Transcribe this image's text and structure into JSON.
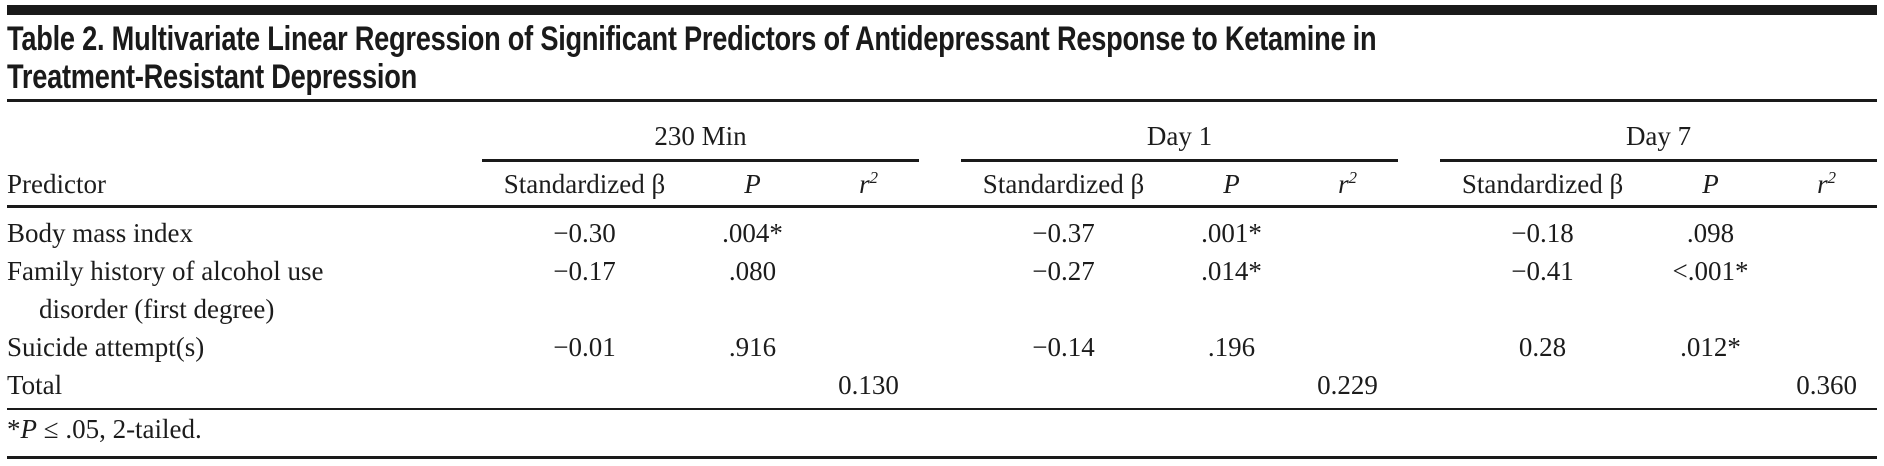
{
  "title": {
    "line1": "Table 2. Multivariate Linear Regression of Significant Predictors of Antidepressant Response to Ketamine in",
    "line2": "Treatment-Resistant Depression"
  },
  "table": {
    "groups": {
      "g1": "230 Min",
      "g2": "Day 1",
      "g3": "Day 7"
    },
    "headers": {
      "predictor": "Predictor",
      "beta": "Standardized β",
      "p": "P",
      "r_base": "r",
      "r_sup": "2"
    },
    "rows": {
      "bmi": {
        "label": "Body mass index",
        "m230_beta": "−0.30",
        "m230_p": ".004*",
        "d1_beta": "−0.37",
        "d1_p": ".001*",
        "d7_beta": "−0.18",
        "d7_p": ".098"
      },
      "family": {
        "label_line1": "Family history of alcohol use",
        "label_line2": "disorder (first degree)",
        "m230_beta": "−0.17",
        "m230_p": ".080",
        "d1_beta": "−0.27",
        "d1_p": ".014*",
        "d7_beta": "−0.41",
        "d7_p": "<.001*"
      },
      "suicide": {
        "label": "Suicide attempt(s)",
        "m230_beta": "−0.01",
        "m230_p": ".916",
        "d1_beta": "−0.14",
        "d1_p": ".196",
        "d7_beta": "0.28",
        "d7_p": ".012*"
      },
      "total": {
        "label": "Total",
        "m230_r2": "0.130",
        "d1_r2": "0.229",
        "d7_r2": "0.360"
      }
    }
  },
  "footnote": {
    "star": "*",
    "p": "P",
    "rest": " ≤ .05, 2-tailed."
  }
}
